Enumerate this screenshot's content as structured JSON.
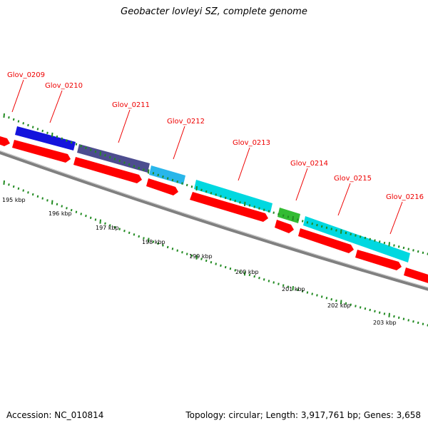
{
  "title": "Geobacter lovleyi SZ, complete genome",
  "footer": {
    "accession": "Accession: NC_010814",
    "topology": "Topology: circular; Length: 3,917,761 bp; Genes: 3,658"
  },
  "colors": {
    "background": "#ffffff",
    "backbone": "#808080",
    "cds_red": "#ff0000",
    "tick_green": "#228b22",
    "label_red": "#ee0000"
  },
  "genes": [
    {
      "label": "Glov_0209",
      "color": "#1414dc"
    },
    {
      "label": "Glov_0210",
      "color": "#4d4d8f"
    },
    {
      "label": "Glov_0211",
      "color": "#29b6ea"
    },
    {
      "label": "Glov_0212",
      "color": "#00d8e0"
    },
    {
      "label": "Glov_0213",
      "color": "#33bb33"
    },
    {
      "label": "Glov_0214",
      "color": "#00d8e0"
    },
    {
      "label": "Glov_0215",
      "color": "#00d8e0"
    },
    {
      "label": "Glov_0216",
      "color": "#00d8e0"
    }
  ],
  "scale": {
    "labels": [
      "195 kbp",
      "196 kbp",
      "197 kbp",
      "198 kbp",
      "199 kbp",
      "200 kbp",
      "201 kbp",
      "202 kbp",
      "203 kbp"
    ]
  }
}
